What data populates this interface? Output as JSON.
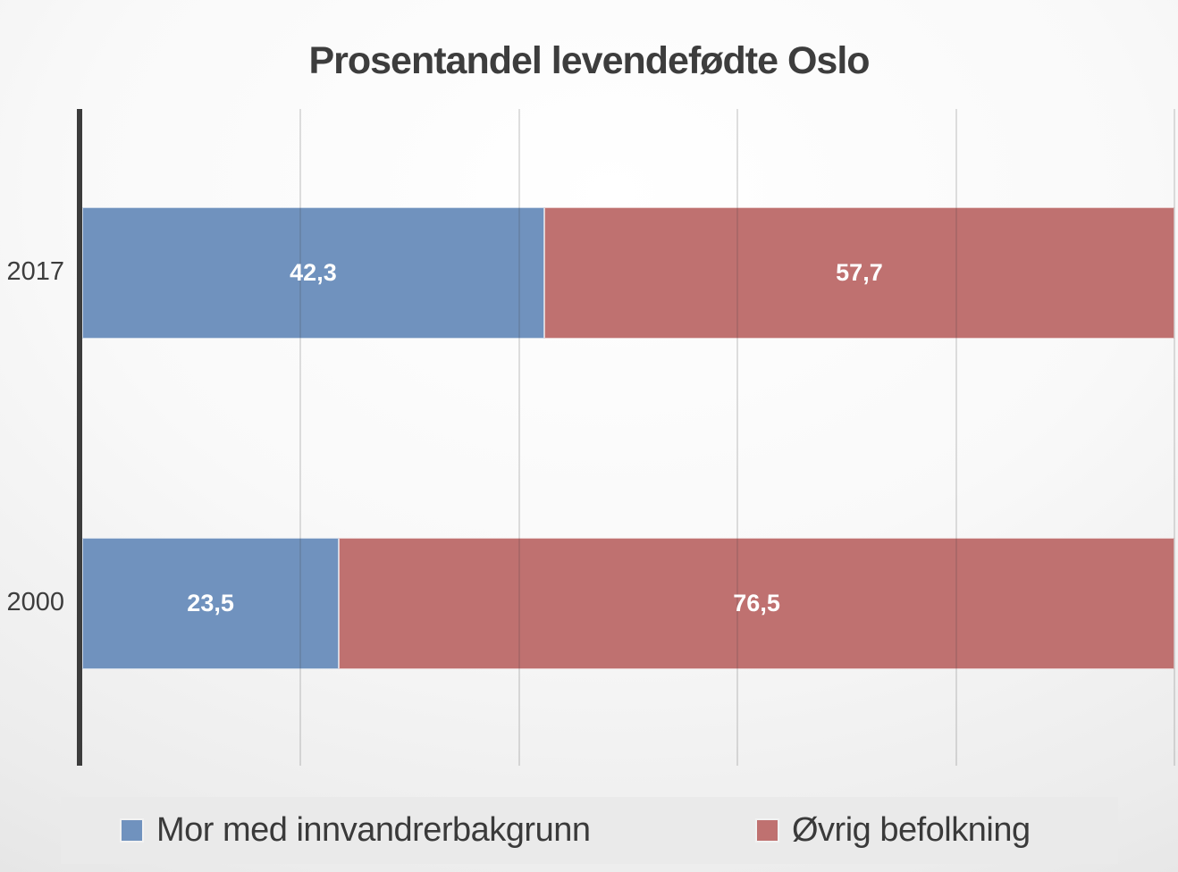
{
  "title": "Prosentandel levendefødte Oslo",
  "colors": {
    "text": "#3D3D3D",
    "axis": "#3C3C3C",
    "gridline": "rgba(60,60,60,0.16)",
    "value_label": "#FFFFFF",
    "legend_bg": "#EAEAEA",
    "background_edge": "#DBDBDB",
    "series1": "#7092BE",
    "series2": "#BF7170"
  },
  "chart_data": {
    "type": "bar",
    "orientation": "horizontal",
    "stacked": true,
    "unit": "percent",
    "title": "Prosentandel levendefødte Oslo",
    "categories": [
      "2017",
      "2000"
    ],
    "series": [
      {
        "name": "Mor med innvandrerbakgrunn",
        "color": "#7092BE",
        "values": [
          42.3,
          23.5
        ],
        "display_values": [
          "42,3",
          "23,5"
        ]
      },
      {
        "name": "Øvrig befolkning",
        "color": "#BF7170",
        "values": [
          57.7,
          76.5
        ],
        "display_values": [
          "57,7",
          "76,5"
        ]
      }
    ],
    "axis": {
      "min": 0,
      "max": 100,
      "gridlines": [
        20,
        40,
        60,
        80,
        100
      ],
      "tick_labels_visible": false
    },
    "legend_position": "bottom"
  }
}
